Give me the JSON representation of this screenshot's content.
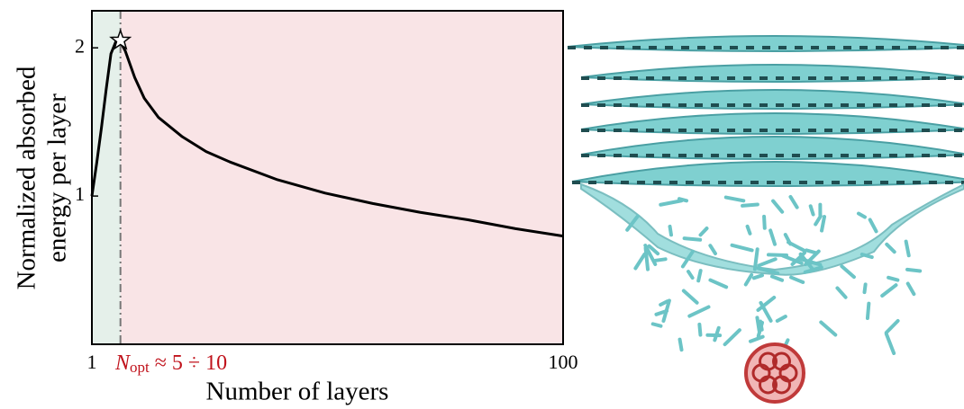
{
  "chart_data": {
    "type": "line",
    "y_label": [
      "Normalized absorbed",
      "energy per layer"
    ],
    "x_label": "Number of layers",
    "x": [
      1,
      2,
      3,
      4,
      5,
      6,
      7,
      8,
      9,
      10,
      12,
      15,
      20,
      25,
      30,
      40,
      50,
      60,
      70,
      80,
      90,
      100
    ],
    "series": [
      {
        "color": "#000000",
        "values": [
          1.0,
          1.22,
          1.46,
          1.72,
          1.96,
          2.04,
          2.04,
          1.98,
          1.89,
          1.8,
          1.66,
          1.53,
          1.4,
          1.3,
          1.23,
          1.11,
          1.02,
          0.95,
          0.89,
          0.84,
          0.78,
          0.73
        ]
      }
    ],
    "xlim": [
      1,
      100
    ],
    "ylim": [
      0,
      2.25
    ],
    "xticks": [
      1,
      100
    ],
    "yticks": [
      1,
      2
    ],
    "vline": 7,
    "regions": [
      {
        "from": 1,
        "to": 7,
        "color": "#e5f0ea"
      },
      {
        "from": 7,
        "to": 100,
        "color": "#f9e4e6"
      }
    ],
    "highlight": {
      "x": 7,
      "y": 2.05
    },
    "annotation": {
      "symbol": "N",
      "subscript": "opt",
      "text": "≈ 5 ÷ 10"
    }
  }
}
